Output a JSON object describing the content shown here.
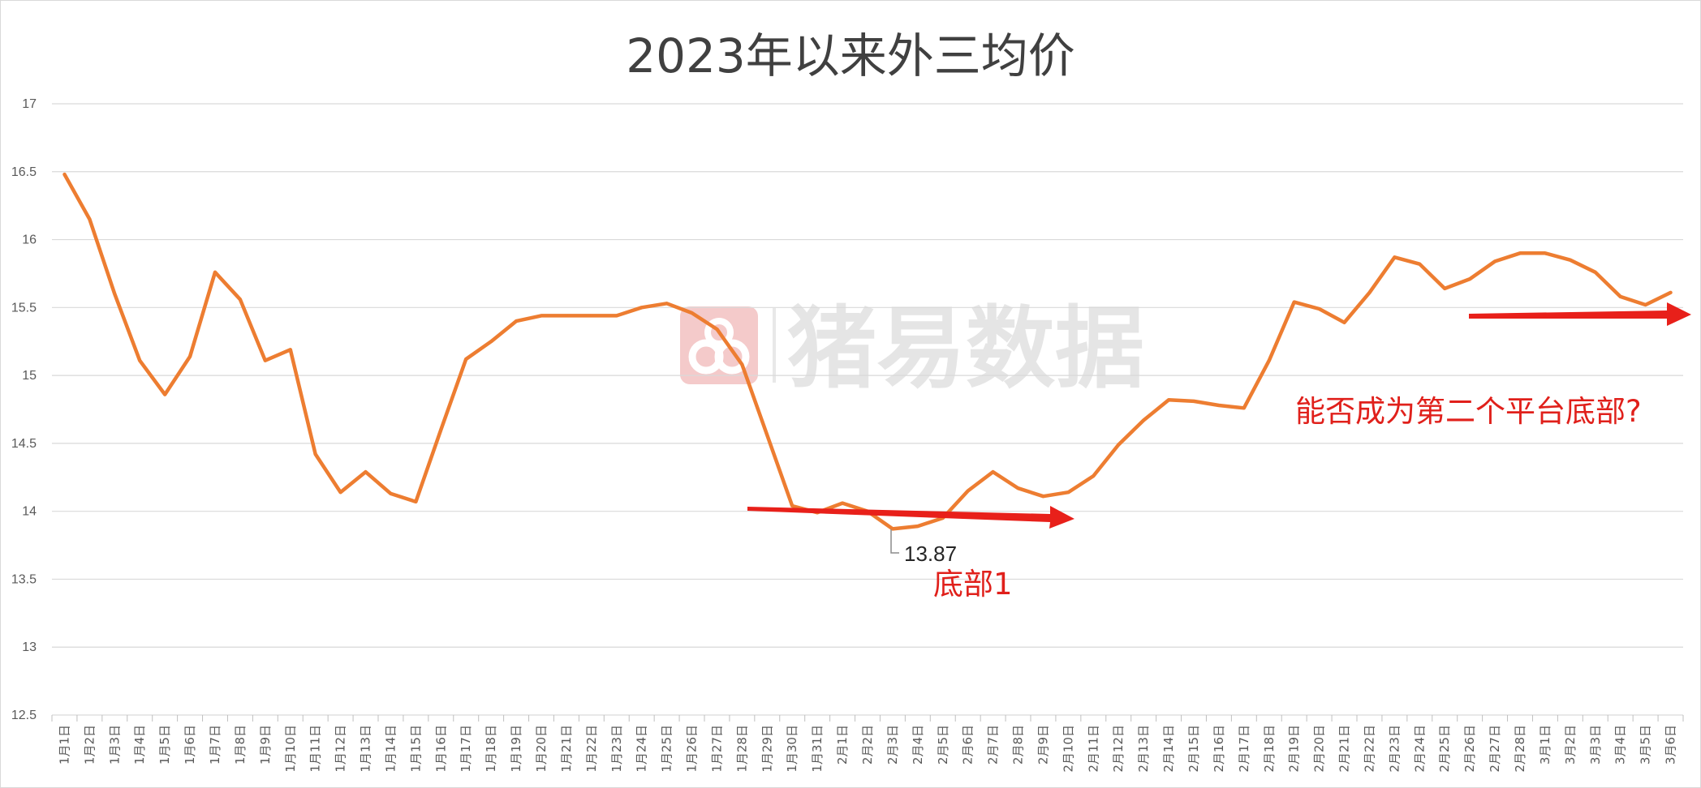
{
  "chart_data": {
    "type": "line",
    "title": "2023年以来外三均价",
    "x": [
      "1月1日",
      "1月2日",
      "1月3日",
      "1月4日",
      "1月5日",
      "1月6日",
      "1月7日",
      "1月8日",
      "1月9日",
      "1月10日",
      "1月11日",
      "1月12日",
      "1月13日",
      "1月14日",
      "1月15日",
      "1月16日",
      "1月17日",
      "1月18日",
      "1月19日",
      "1月20日",
      "1月21日",
      "1月22日",
      "1月23日",
      "1月24日",
      "1月25日",
      "1月26日",
      "1月27日",
      "1月28日",
      "1月29日",
      "1月30日",
      "1月31日",
      "2月1日",
      "2月2日",
      "2月3日",
      "2月4日",
      "2月5日",
      "2月6日",
      "2月7日",
      "2月8日",
      "2月9日",
      "2月10日",
      "2月11日",
      "2月12日",
      "2月13日",
      "2月14日",
      "2月15日",
      "2月16日",
      "2月17日",
      "2月18日",
      "2月19日",
      "2月20日",
      "2月21日",
      "2月22日",
      "2月23日",
      "2月24日",
      "2月25日",
      "2月26日",
      "2月27日",
      "2月28日",
      "3月1日",
      "3月2日",
      "3月3日",
      "3月4日",
      "3月5日",
      "3月6日"
    ],
    "series": [
      {
        "values": [
          16.48,
          16.15,
          15.6,
          15.11,
          14.86,
          15.14,
          15.76,
          15.56,
          15.11,
          15.19,
          14.42,
          14.14,
          14.29,
          14.13,
          14.07,
          14.6,
          15.12,
          15.25,
          15.4,
          15.44,
          15.44,
          15.44,
          15.44,
          15.5,
          15.53,
          15.46,
          15.34,
          15.08,
          14.56,
          14.04,
          13.99,
          14.06,
          14.0,
          13.87,
          13.89,
          13.95,
          14.15,
          14.29,
          14.17,
          14.11,
          14.14,
          14.26,
          14.49,
          14.67,
          14.82,
          14.81,
          14.78,
          14.76,
          15.11,
          15.54,
          15.49,
          15.39,
          15.61,
          15.87,
          15.82,
          15.64,
          15.71,
          15.84,
          15.9,
          15.9,
          15.85,
          15.76,
          15.58,
          15.52,
          15.61
        ],
        "color": "#ED7D31"
      }
    ],
    "ylim": [
      12.5,
      17
    ],
    "yticks": [
      "12.5",
      "13",
      "13.5",
      "14",
      "14.5",
      "15",
      "15.5",
      "16",
      "16.5",
      "17"
    ],
    "grid": true,
    "legend": "none",
    "annotations": {
      "min_label": "13.87",
      "bottom1": "底部1",
      "question": "能否成为第二个平台底部?",
      "arrow_color": "#E8201A"
    }
  },
  "watermark": {
    "text": "猪易数据"
  }
}
